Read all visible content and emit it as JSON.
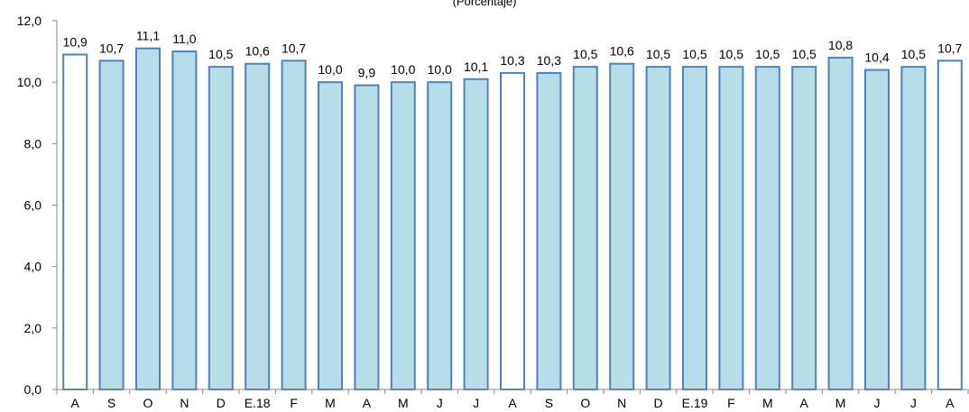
{
  "subtitle": "(Porcentaje)",
  "colors": {
    "bar_fill": "#b7dde8",
    "bar_fill_highlight": "#ffffff",
    "bar_stroke": "#4f81bd",
    "axis": "#868686"
  },
  "chart_data": {
    "type": "bar",
    "title": "",
    "subtitle": "(Porcentaje)",
    "xlabel": "",
    "ylabel": "",
    "ylim": [
      0,
      12
    ],
    "yticks": [
      0,
      2,
      4,
      6,
      8,
      10,
      12
    ],
    "ytick_labels": [
      "0,0",
      "2,0",
      "4,0",
      "6,0",
      "8,0",
      "10,0",
      "12,0"
    ],
    "grid": false,
    "categories": [
      "A",
      "S",
      "O",
      "N",
      "D",
      "E.18",
      "F",
      "M",
      "A",
      "M",
      "J",
      "J",
      "A",
      "S",
      "O",
      "N",
      "D",
      "E.19",
      "F",
      "M",
      "A",
      "M",
      "J",
      "J",
      "A"
    ],
    "values": [
      10.9,
      10.7,
      11.1,
      11.0,
      10.5,
      10.6,
      10.7,
      10.0,
      9.9,
      10.0,
      10.0,
      10.1,
      10.3,
      10.3,
      10.5,
      10.6,
      10.5,
      10.5,
      10.5,
      10.5,
      10.5,
      10.8,
      10.4,
      10.5,
      10.7
    ],
    "value_labels": [
      "10,9",
      "10,7",
      "11,1",
      "11,0",
      "10,5",
      "10,6",
      "10,7",
      "10,0",
      "9,9",
      "10,0",
      "10,0",
      "10,1",
      "10,3",
      "10,3",
      "10,5",
      "10,6",
      "10,5",
      "10,5",
      "10,5",
      "10,5",
      "10,5",
      "10,8",
      "10,4",
      "10,5",
      "10,7"
    ],
    "highlighted_categories": [
      0,
      12,
      24
    ]
  }
}
